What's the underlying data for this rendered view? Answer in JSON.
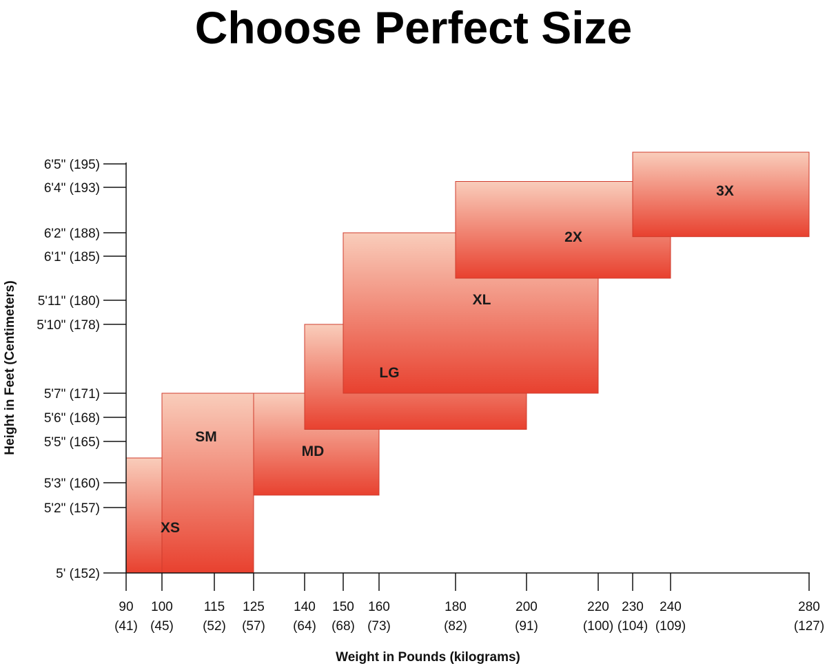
{
  "title": "Choose Perfect Size",
  "chart_data": {
    "type": "range-boxes",
    "title": "Choose Perfect Size",
    "xlabel": "Weight in Pounds (kilograms)",
    "ylabel": "Height in Feet (Centimeters)",
    "xlim": [
      90,
      280
    ],
    "ylim": [
      152,
      195
    ],
    "x_ticks": [
      {
        "value": 90,
        "label": "90",
        "sub": "(41)"
      },
      {
        "value": 100,
        "label": "100",
        "sub": "(45)"
      },
      {
        "value": 115,
        "label": "115",
        "sub": "(52)"
      },
      {
        "value": 125,
        "label": "125",
        "sub": "(57)"
      },
      {
        "value": 140,
        "label": "140",
        "sub": "(64)"
      },
      {
        "value": 150,
        "label": "150",
        "sub": "(68)"
      },
      {
        "value": 160,
        "label": "160",
        "sub": "(73)"
      },
      {
        "value": 180,
        "label": "180",
        "sub": "(82)"
      },
      {
        "value": 200,
        "label": "200",
        "sub": "(91)"
      },
      {
        "value": 220,
        "label": "220",
        "sub": "(100)"
      },
      {
        "value": 230,
        "label": "230",
        "sub": "(104)"
      },
      {
        "value": 240,
        "label": "240",
        "sub": "(109)"
      },
      {
        "value": 280,
        "label": "280",
        "sub": "(127)"
      }
    ],
    "y_ticks": [
      {
        "value": 195,
        "label": "6'5\" (195)"
      },
      {
        "value": 193,
        "label": "6'4\" (193)"
      },
      {
        "value": 188,
        "label": "6'2\" (188)"
      },
      {
        "value": 185,
        "label": "6'1\" (185)"
      },
      {
        "value": 180,
        "label": "5'11\" (180)"
      },
      {
        "value": 178,
        "label": "5'10\" (178)"
      },
      {
        "value": 171,
        "label": "5'7\" (171)"
      },
      {
        "value": 168,
        "label": "5'6\" (168)"
      },
      {
        "value": 165,
        "label": "5'5\" (165)"
      },
      {
        "value": 160,
        "label": "5'3\" (160)"
      },
      {
        "value": 157,
        "label": "5'2\" (157)"
      },
      {
        "value": 152,
        "label": "5' (152)"
      }
    ],
    "sizes": [
      {
        "name": "XS",
        "weight": [
          90,
          115
        ],
        "height": [
          152,
          163
        ]
      },
      {
        "name": "SM",
        "weight": [
          100,
          125
        ],
        "height": [
          152,
          171
        ]
      },
      {
        "name": "MD",
        "weight": [
          125,
          160
        ],
        "height": [
          158.5,
          171
        ]
      },
      {
        "name": "LG",
        "weight": [
          140,
          200
        ],
        "height": [
          166.5,
          178
        ]
      },
      {
        "name": "XL",
        "weight": [
          150,
          220
        ],
        "height": [
          171,
          188
        ]
      },
      {
        "name": "2X",
        "weight": [
          180,
          240
        ],
        "height": [
          182.5,
          193.5
        ]
      },
      {
        "name": "3X",
        "weight": [
          230,
          280
        ],
        "height": [
          187.5,
          196
        ]
      }
    ],
    "colors": {
      "top": "#f9cdbb",
      "bottom": "#e8412f",
      "edge": "#cf3b2c"
    }
  }
}
